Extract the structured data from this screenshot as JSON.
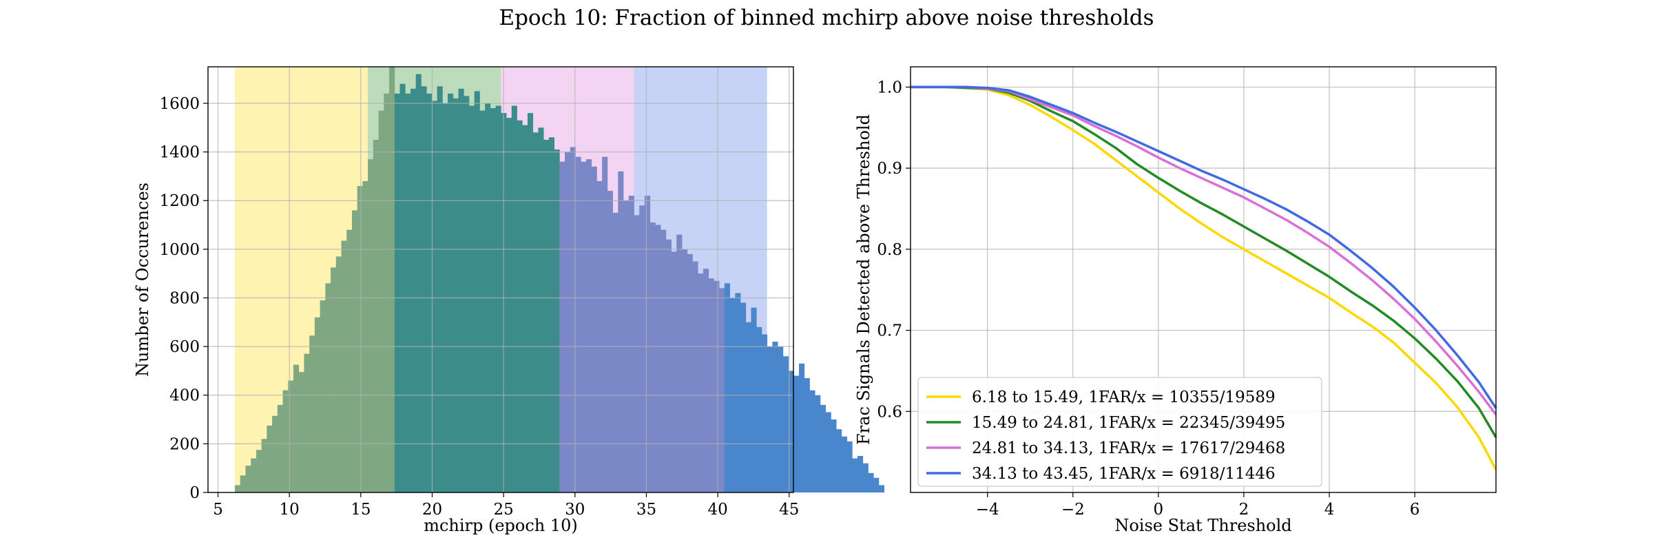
{
  "figure": {
    "suptitle": "Epoch 10: Fraction of binned mchirp above noise thresholds"
  },
  "chart_data": [
    {
      "type": "bar",
      "subtype": "histogram",
      "xlabel": "mchirp (epoch 10)",
      "ylabel": "Number of Occurences",
      "xlim": [
        4.3,
        45.3
      ],
      "ylim": [
        0,
        1750
      ],
      "xticks": [
        5,
        10,
        15,
        20,
        25,
        30,
        35,
        40,
        45
      ],
      "yticks": [
        0,
        200,
        400,
        600,
        800,
        1000,
        1200,
        1400,
        1600
      ],
      "grid": true,
      "bin_start": 6.18,
      "bin_width": 0.3727,
      "bins": [
        {
          "range": [
            6.18,
            15.49
          ],
          "color": "#FFD700",
          "hist_color": "#7FA882",
          "counts": [
            30,
            70,
            110,
            140,
            175,
            220,
            275,
            315,
            360,
            420,
            460,
            525,
            495,
            570,
            645,
            720,
            790,
            860,
            925,
            970,
            1035,
            1080,
            1160,
            1260,
            1280,
            1370,
            1450,
            1570,
            1640,
            1750
          ]
        },
        {
          "range": [
            15.49,
            24.81
          ],
          "color": "#228B22",
          "hist_color": "#3C8C8C",
          "counts": [
            1640,
            1680,
            1640,
            1660,
            1720,
            1670,
            1640,
            1610,
            1670,
            1600,
            1640,
            1620,
            1660,
            1630,
            1590,
            1650,
            1570,
            1600,
            1580,
            1590,
            1560,
            1540,
            1590,
            1530,
            1510,
            1560,
            1480,
            1500,
            1450,
            1460,
            1410
          ]
        },
        {
          "range": [
            24.81,
            34.13
          ],
          "color": "#DA70D6",
          "hist_color": "#7A88C8",
          "counts": [
            1360,
            1400,
            1420,
            1380,
            1360,
            1370,
            1340,
            1280,
            1380,
            1240,
            1150,
            1320,
            1200,
            1220,
            1140,
            1180,
            1220,
            1110,
            1100,
            1080,
            1040,
            990,
            1060,
            1000,
            980,
            950,
            900,
            920,
            880,
            870,
            840
          ]
        },
        {
          "range": [
            34.13,
            43.45
          ],
          "color": "#4169E1",
          "hist_color": "#4A86CC",
          "counts": [
            860,
            800,
            820,
            780,
            700,
            760,
            680,
            650,
            600,
            620,
            600,
            560,
            500,
            480,
            530,
            470,
            420,
            400,
            360,
            330,
            300,
            260,
            230,
            210,
            140,
            150,
            120,
            80,
            60,
            30
          ]
        }
      ]
    },
    {
      "type": "line",
      "xlabel": "Noise Stat Threshold",
      "ylabel": "Frac Signals Detected above Threshold",
      "xlim": [
        -5.8,
        7.9
      ],
      "ylim": [
        0.5,
        1.025
      ],
      "xticks": [
        -4,
        -2,
        0,
        2,
        4,
        6
      ],
      "yticks": [
        0.6,
        0.7,
        0.8,
        0.9,
        1.0
      ],
      "xticklabels": [
        "−4",
        "−2",
        "0",
        "2",
        "4",
        "6"
      ],
      "yticklabels": [
        "0.6",
        "0.7",
        "0.8",
        "0.9",
        "1.0"
      ],
      "grid": true,
      "legend_position": "lower-left",
      "x": [
        -5.8,
        -5,
        -4.5,
        -4,
        -3.5,
        -3,
        -2.5,
        -2,
        -1.5,
        -1,
        -0.5,
        0,
        0.5,
        1,
        1.5,
        2,
        2.5,
        3,
        3.5,
        4,
        4.5,
        5,
        5.5,
        6,
        6.5,
        7,
        7.5,
        7.9
      ],
      "series": [
        {
          "name": "6.18 to 15.49, 1FAR/x = 10355/19589",
          "color": "#FFD700",
          "values": [
            1.0,
            1.0,
            0.999,
            0.997,
            0.99,
            0.978,
            0.963,
            0.947,
            0.93,
            0.91,
            0.89,
            0.87,
            0.85,
            0.832,
            0.815,
            0.8,
            0.785,
            0.77,
            0.755,
            0.74,
            0.722,
            0.705,
            0.685,
            0.66,
            0.635,
            0.605,
            0.568,
            0.528
          ]
        },
        {
          "name": "15.49 to 24.81, 1FAR/x = 22345/39495",
          "color": "#228B22",
          "values": [
            1.0,
            1.0,
            0.999,
            0.998,
            0.993,
            0.983,
            0.97,
            0.958,
            0.942,
            0.925,
            0.905,
            0.888,
            0.872,
            0.857,
            0.843,
            0.828,
            0.813,
            0.798,
            0.782,
            0.766,
            0.748,
            0.731,
            0.712,
            0.69,
            0.665,
            0.637,
            0.604,
            0.568
          ]
        },
        {
          "name": "24.81 to 34.13, 1FAR/x = 17617/29468",
          "color": "#DA70D6",
          "values": [
            1.0,
            1.0,
            1.0,
            0.998,
            0.995,
            0.985,
            0.975,
            0.965,
            0.952,
            0.94,
            0.927,
            0.913,
            0.9,
            0.888,
            0.876,
            0.864,
            0.85,
            0.836,
            0.82,
            0.803,
            0.783,
            0.762,
            0.739,
            0.714,
            0.686,
            0.656,
            0.624,
            0.596
          ]
        },
        {
          "name": "34.13 to 43.45, 1FAR/x = 6918/11446",
          "color": "#4169E1",
          "values": [
            1.0,
            1.0,
            1.0,
            0.999,
            0.996,
            0.988,
            0.978,
            0.968,
            0.956,
            0.945,
            0.933,
            0.921,
            0.909,
            0.897,
            0.886,
            0.874,
            0.862,
            0.849,
            0.834,
            0.818,
            0.798,
            0.777,
            0.754,
            0.728,
            0.7,
            0.669,
            0.636,
            0.604
          ]
        }
      ]
    }
  ]
}
